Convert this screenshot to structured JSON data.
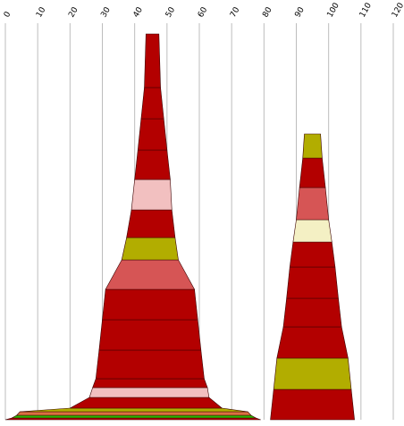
{
  "chart_data": {
    "type": "stacked-bands",
    "x_ticks": [
      "0",
      "10",
      "20",
      "30",
      "40",
      "50",
      "60",
      "70",
      "80",
      "90",
      "100",
      "110",
      "120"
    ],
    "xlim": [
      0,
      120
    ],
    "grid": true,
    "colors": {
      "dark_red": "#b30000",
      "pink": "#f2c0c0",
      "olive": "#b2ad00",
      "salmon": "#d65555",
      "cream": "#f4f0c4",
      "green": "#2db300",
      "orange": "#d97040"
    },
    "shapes": [
      {
        "name": "",
        "bands": [
          {
            "left": 0,
            "right": 79,
            "color": "dark_red"
          },
          {
            "left": 2,
            "right": 77.5,
            "color": "green"
          },
          {
            "left": 3.5,
            "right": 76,
            "color": "orange"
          },
          {
            "left": 4.5,
            "right": 75,
            "color": "olive"
          },
          {
            "left": 20,
            "right": 67,
            "color": "dark_red"
          },
          {
            "left": 26,
            "right": 63,
            "color": "pink"
          },
          {
            "left": 27,
            "right": 62.5,
            "color": "dark_red"
          },
          {
            "left": 28,
            "right": 61.5,
            "color": "dark_red"
          },
          {
            "left": 29,
            "right": 60.5,
            "color": "dark_red"
          },
          {
            "left": 30,
            "right": 59.5,
            "color": "dark_red"
          },
          {
            "left": 31,
            "right": 58.5,
            "color": "salmon"
          },
          {
            "left": 36,
            "right": 53.5,
            "color": "olive"
          },
          {
            "left": 37.5,
            "right": 52.5,
            "color": "dark_red"
          },
          {
            "left": 39,
            "right": 51.5,
            "color": "pink"
          },
          {
            "left": 40,
            "right": 51,
            "color": "dark_red"
          },
          {
            "left": 41,
            "right": 50,
            "color": "dark_red"
          },
          {
            "left": 42,
            "right": 49,
            "color": "dark_red"
          },
          {
            "left": 43,
            "right": 48,
            "color": "dark_red"
          }
        ]
      },
      {
        "name": "",
        "bands": [
          {
            "left": 82,
            "right": 108,
            "color": "dark_red"
          },
          {
            "left": 83,
            "right": 107,
            "color": "olive"
          },
          {
            "left": 84,
            "right": 106,
            "color": "dark_red"
          },
          {
            "left": 86,
            "right": 104,
            "color": "dark_red"
          },
          {
            "left": 87,
            "right": 103,
            "color": "dark_red"
          },
          {
            "left": 88,
            "right": 102,
            "color": "dark_red"
          },
          {
            "left": 89,
            "right": 101,
            "color": "cream"
          },
          {
            "left": 90,
            "right": 100,
            "color": "salmon"
          },
          {
            "left": 91,
            "right": 99,
            "color": "dark_red"
          },
          {
            "left": 92,
            "right": 98,
            "color": "olive"
          }
        ]
      }
    ]
  }
}
